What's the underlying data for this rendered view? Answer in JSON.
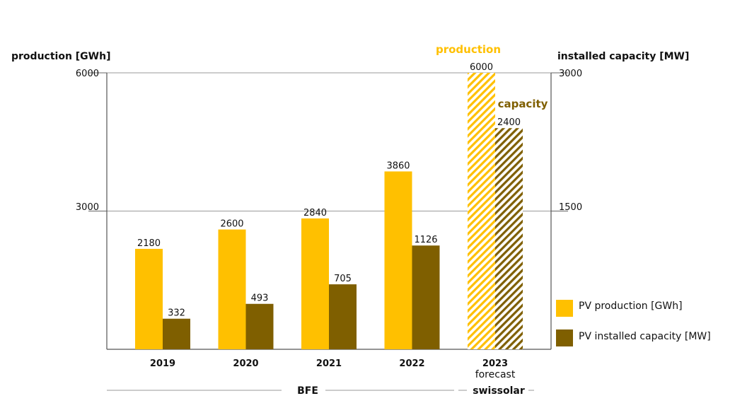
{
  "chart_data": {
    "type": "bar",
    "left_axis_title": "production [GWh]",
    "right_axis_title": "installed capacity [MW]",
    "left_ylim": [
      0,
      6000
    ],
    "right_ylim": [
      0,
      3000
    ],
    "left_ticks": [
      "6000",
      "3000"
    ],
    "right_ticks": [
      "3000",
      "1500"
    ],
    "categories": [
      "2019",
      "2020",
      "2021",
      "2022",
      "2023"
    ],
    "category_sublabels": [
      "",
      "",
      "",
      "",
      "forecast"
    ],
    "series": [
      {
        "name": "PV production [GWh]",
        "axis": "left",
        "color": "#FFC000",
        "values": [
          2180,
          2600,
          2840,
          3860,
          6000
        ],
        "labels": [
          "2180",
          "2600",
          "2840",
          "3860",
          "6000"
        ]
      },
      {
        "name": "PV installed capacity [MW]",
        "axis": "right",
        "color": "#7F5F00",
        "values": [
          332,
          493,
          705,
          1126,
          2400
        ],
        "labels": [
          "332",
          "493",
          "705",
          "1126",
          "2400"
        ]
      }
    ],
    "forecast_category": "2023",
    "forecast_style": "hatched",
    "annotations": {
      "production": "production",
      "capacity": "capacity"
    },
    "sources": [
      "BFE",
      "swissolar"
    ],
    "grid": true,
    "legend_position": "right"
  }
}
